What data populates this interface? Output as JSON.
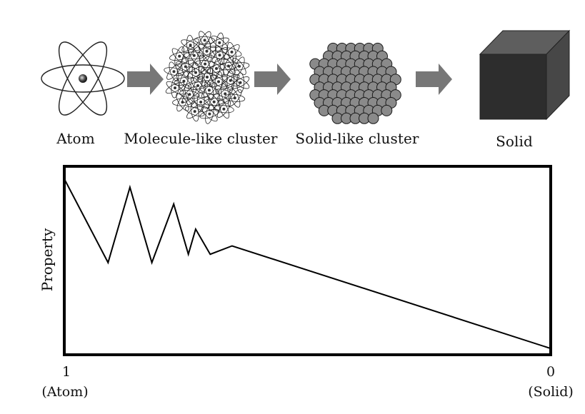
{
  "stages": {
    "atom": "Atom",
    "molecule_like": "Molecule-like cluster",
    "solid_like": "Solid-like cluster",
    "solid": "Solid"
  },
  "chart_data": {
    "type": "line",
    "ylabel": "Property",
    "xlabel": "",
    "xlim": [
      1,
      0
    ],
    "x_tick_labels": [
      {
        "value": "1",
        "note": "(Atom)"
      },
      {
        "value": "0",
        "note": "(Solid)"
      }
    ],
    "series": [
      {
        "x": [
          1.0,
          0.91,
          0.865,
          0.82,
          0.775,
          0.745,
          0.73,
          0.7,
          0.655,
          0.0
        ],
        "values": [
          0.84,
          0.44,
          0.8,
          0.44,
          0.72,
          0.48,
          0.6,
          0.48,
          0.52,
          0.03
        ]
      }
    ],
    "ylim": [
      0,
      0.9
    ],
    "grid": false
  },
  "colors": {
    "arrow": "#777777",
    "cluster_sphere": "#8a8a8a",
    "cube_front": "#2d2d2d",
    "cube_top": "#5e5e5e",
    "cube_side": "#474747"
  }
}
